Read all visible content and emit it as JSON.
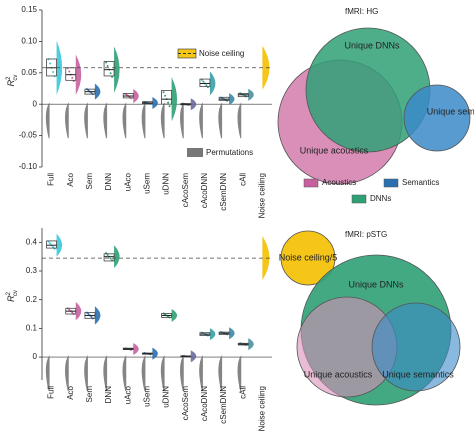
{
  "chart_data": [
    {
      "type": "box",
      "y_label": {
        "base": "R",
        "sup": "2",
        "sub": "cv"
      },
      "categories": [
        "Full",
        "Aco",
        "Sem",
        "DNN",
        "uAco",
        "uSem",
        "uDNN",
        "cAcoSem",
        "cAcoDNN",
        "cSemDNN",
        "cAll",
        "Noise ceiling"
      ],
      "colors": [
        "#38c8dc",
        "#c8609e",
        "#2a6fb0",
        "#2fa075",
        "#c8609e",
        "#2a6fb0",
        "#2fa075",
        "#6a6aa0",
        "#3aa0a8",
        "#3a8aa8",
        "#4a90a0",
        "#f5c518"
      ],
      "box_low": [
        0.045,
        0.038,
        0.016,
        0.045,
        0.01,
        0.001,
        0.0,
        -0.001,
        0.028,
        0.006,
        0.012,
        null
      ],
      "box_median": [
        0.058,
        0.047,
        0.02,
        0.055,
        0.013,
        0.002,
        0.008,
        0.0,
        0.033,
        0.008,
        0.015,
        null
      ],
      "box_high": [
        0.072,
        0.058,
        0.024,
        0.068,
        0.017,
        0.004,
        0.022,
        0.001,
        0.04,
        0.011,
        0.017,
        null
      ],
      "noise_ceiling": 0.058,
      "ylim": [
        -0.1,
        0.15
      ],
      "yticks": [
        {
          "value": -0.1,
          "label": "-0.10"
        },
        -0.05,
        0,
        0.05,
        {
          "value": 0.1,
          "label": "0.10"
        },
        0.15
      ],
      "legend": [
        "Noise ceiling",
        "Permutations"
      ]
    },
    {
      "type": "box",
      "y_label": {
        "base": "R",
        "sup": "2",
        "sub": "cv"
      },
      "categories": [
        "Full",
        "Aco",
        "Sem",
        "DNN",
        "uAco",
        "uSem",
        "uDNN",
        "cAcoSem",
        "cAcoDNN",
        "cSemDNN",
        "cAll",
        "Noise ceiling"
      ],
      "colors": [
        "#38c8dc",
        "#c8609e",
        "#2a6fb0",
        "#2fa075",
        "#c8609e",
        "#2a6fb0",
        "#2fa075",
        "#6a6aa0",
        "#3aa0a8",
        "#3a8aa8",
        "#4a90a0",
        "#f5c518"
      ],
      "box_low": [
        0.38,
        0.15,
        0.135,
        0.335,
        0.026,
        0.01,
        0.138,
        0.002,
        0.075,
        0.079,
        0.042,
        null
      ],
      "box_median": [
        0.39,
        0.16,
        0.145,
        0.35,
        0.028,
        0.012,
        0.145,
        0.003,
        0.08,
        0.083,
        0.045,
        null
      ],
      "box_high": [
        0.405,
        0.17,
        0.155,
        0.36,
        0.031,
        0.014,
        0.152,
        0.004,
        0.085,
        0.087,
        0.048,
        null
      ],
      "noise_ceiling": 0.345,
      "ylim": [
        -0.08,
        0.45
      ],
      "yticks": [
        0,
        0.1,
        0.2,
        0.3,
        0.4
      ]
    }
  ],
  "venn": [
    {
      "title": "fMRI: HG",
      "labels": [
        "Unique DNNs",
        "Unique acoustics",
        "Unique sem."
      ],
      "legend": [
        "Acoustics",
        "Semantics",
        "DNNs"
      ]
    },
    {
      "title": "fMRI: pSTG",
      "labels": [
        "Unique DNNs",
        "Unique acoustics",
        "Unique semantics"
      ],
      "noise_label": "Noise ceiling/5"
    }
  ]
}
